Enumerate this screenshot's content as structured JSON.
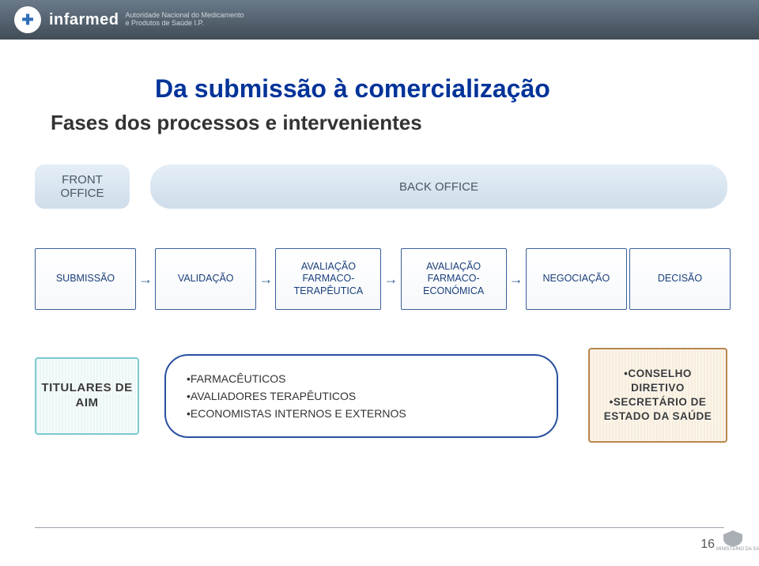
{
  "header": {
    "brand": "infarmed",
    "brand_sub": "Autoridade Nacional do Medicamento\ne Produtos de Saúde I.P."
  },
  "title": "Da submissão à comercialização",
  "subtitle": "Fases dos processos e intervenientes",
  "offices": {
    "front": "FRONT\nOFFICE",
    "back": "BACK OFFICE"
  },
  "process": {
    "boxes": [
      "SUBMISSÃO",
      "VALIDAÇÃO",
      "AVALIAÇÃO FARMACO-TERAPÊUTICA",
      "AVALIAÇÃO FARMACO-ECONÓMICA",
      "NEGOCIAÇÃO",
      "DECISÃO"
    ],
    "arrow_glyph": "→",
    "box_border": "#3a5f9a",
    "text_color": "#1a3f7a"
  },
  "actors": {
    "titulares": "TITULARES DE AIM",
    "bubble": [
      "•FARMACÊUTICOS",
      "•AVALIADORES TERAPÊUTICOS",
      "•ECONOMISTAS INTERNOS E EXTERNOS"
    ],
    "conselho": "•CONSELHO DIRETIVO\n•SECRETÁRIO DE ESTADO DA SAÚDE"
  },
  "colors": {
    "title": "#003399",
    "subtitle": "#333333",
    "office_bg_top": "#e4eef7",
    "office_bg_bottom": "#cfddea",
    "office_text": "#495866",
    "titulares_border": "#7bcacf",
    "bubble_border": "#2a4fa0",
    "conselho_border": "#b8864e"
  },
  "footer": {
    "page_number": "16",
    "ministry": "MINISTÉRIO DA SAÚDE"
  }
}
